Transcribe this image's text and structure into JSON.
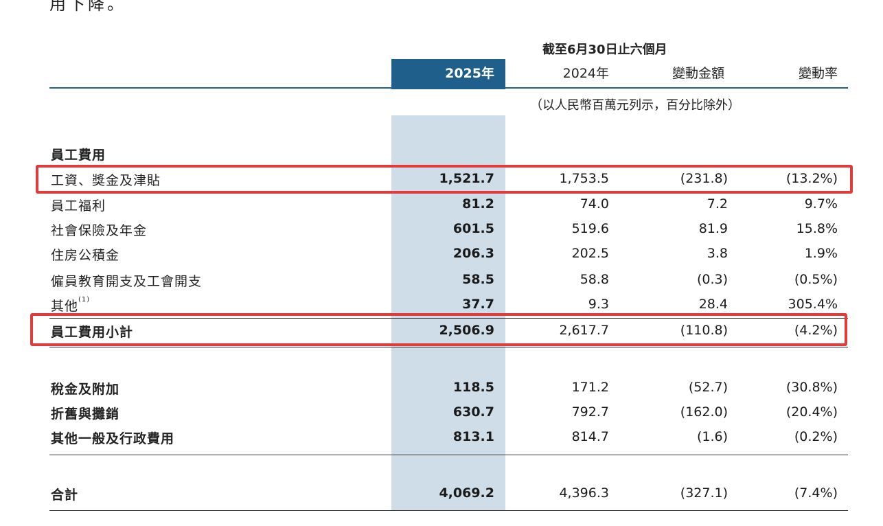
{
  "top_fragment": "用下降。",
  "header": {
    "period": "截至6月30日止六個月",
    "cols": [
      "2025年",
      "2024年",
      "變動金額",
      "變動率"
    ],
    "units_note": "（以人民幣百萬元列示，百分比除外）"
  },
  "section_title": "員工費用",
  "rows": [
    {
      "label": "工資、獎金及津貼",
      "v2025": "1,521.7",
      "v2024": "1,753.5",
      "change": "(231.8)",
      "rate": "(13.2%)"
    },
    {
      "label": "員工福利",
      "v2025": "81.2",
      "v2024": "74.0",
      "change": "7.2",
      "rate": "9.7%"
    },
    {
      "label": "社會保險及年金",
      "v2025": "601.5",
      "v2024": "519.6",
      "change": "81.9",
      "rate": "15.8%"
    },
    {
      "label": "住房公積金",
      "v2025": "206.3",
      "v2024": "202.5",
      "change": "3.8",
      "rate": "1.9%"
    },
    {
      "label": "僱員教育開支及工會開支",
      "v2025": "58.5",
      "v2024": "58.8",
      "change": "(0.3)",
      "rate": "(0.5%)"
    },
    {
      "label": "其他",
      "note": "(1)",
      "v2025": "37.7",
      "v2024": "9.3",
      "change": "28.4",
      "rate": "305.4%"
    },
    {
      "label": "員工費用小計",
      "v2025": "2,506.9",
      "v2024": "2,617.7",
      "change": "(110.8)",
      "rate": "(4.2%)"
    },
    {
      "label": "稅金及附加",
      "v2025": "118.5",
      "v2024": "171.2",
      "change": "(52.7)",
      "rate": "(30.8%)"
    },
    {
      "label": "折舊與攤銷",
      "v2025": "630.7",
      "v2024": "792.7",
      "change": "(162.0)",
      "rate": "(20.4%)"
    },
    {
      "label": "其他一般及行政費用",
      "v2025": "813.1",
      "v2024": "814.7",
      "change": "(1.6)",
      "rate": "(0.2%)"
    },
    {
      "label": "合計",
      "v2025": "4,069.2",
      "v2024": "4,396.3",
      "change": "(327.1)",
      "rate": "(7.4%)"
    }
  ],
  "colors": {
    "accent": "#1f5f8b",
    "column_shade": "#cfdde9",
    "highlight_box": "#e03c3c"
  }
}
